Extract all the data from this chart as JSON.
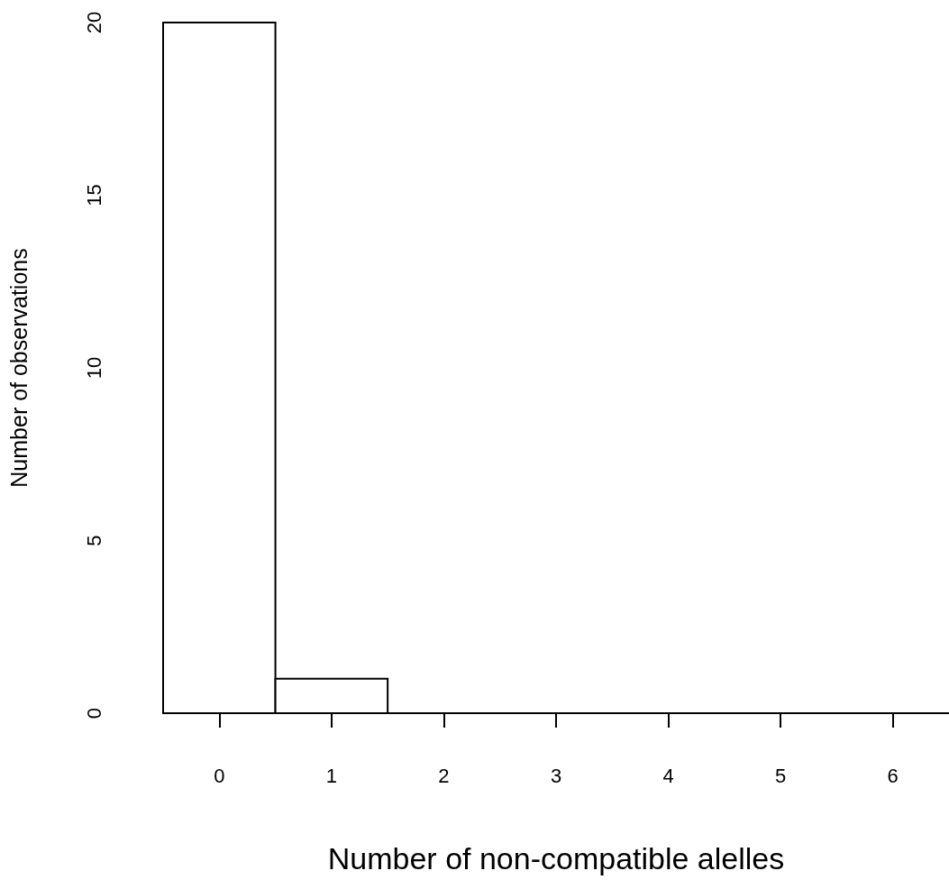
{
  "chart_data": {
    "type": "histogram",
    "xlabel": "Number of non-compatible alelles",
    "ylabel": "Number of observations",
    "bins": [
      -0.5,
      0.5,
      1.5,
      2.5,
      3.5,
      4.5,
      5.5,
      6.5
    ],
    "values": [
      20,
      1,
      0,
      0,
      0,
      0,
      0
    ],
    "xlim": [
      -0.5,
      6.5
    ],
    "xticks": [
      0,
      1,
      2,
      3,
      4,
      5,
      6
    ],
    "ylim": [
      0,
      20
    ],
    "yticks": [
      0,
      5,
      10,
      15,
      20
    ]
  }
}
